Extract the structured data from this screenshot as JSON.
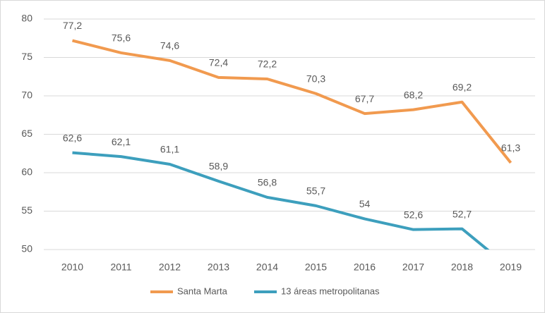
{
  "chart_data": {
    "type": "line",
    "categories": [
      "2010",
      "2011",
      "2012",
      "2013",
      "2014",
      "2015",
      "2016",
      "2017",
      "2018",
      "2019"
    ],
    "series": [
      {
        "name": "Santa Marta",
        "color": "#f19a4f",
        "values": [
          77.2,
          75.6,
          74.6,
          72.4,
          72.2,
          70.3,
          67.7,
          68.2,
          69.2,
          61.3
        ],
        "value_labels": [
          "77,2",
          "75,6",
          "74,6",
          "72,4",
          "72,2",
          "70,3",
          "67,7",
          "68,2",
          "69,2",
          "61,3"
        ]
      },
      {
        "name": "13 áreas metropolitanas",
        "color": "#3d9fbd",
        "values": [
          62.6,
          62.1,
          61.1,
          58.9,
          56.8,
          55.7,
          54,
          52.6,
          52.7,
          47.5
        ],
        "value_labels": [
          "62,6",
          "62,1",
          "61,1",
          "58,9",
          "56,8",
          "55,7",
          "54",
          "52,6",
          "52,7",
          null
        ]
      }
    ],
    "ylim": [
      50,
      80
    ],
    "yticks": [
      50,
      55,
      60,
      65,
      70,
      75,
      80
    ],
    "grid": true,
    "legend": "bottom"
  }
}
